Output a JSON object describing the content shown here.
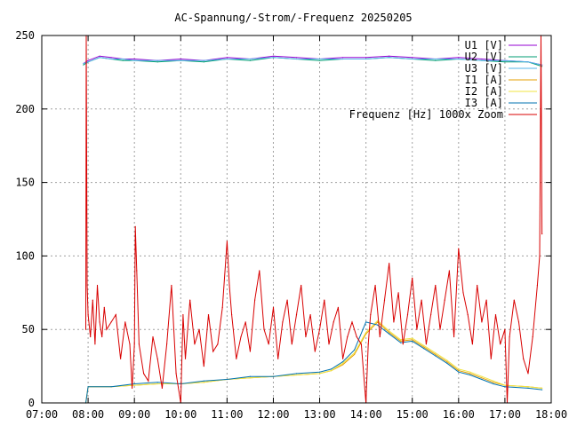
{
  "chart_data": {
    "type": "line",
    "title": "AC-Spannung/-Strom/-Frequenz 20250205",
    "xlabel": "",
    "ylabel": "",
    "x_unit": "hours",
    "xlim": [
      7,
      18
    ],
    "ylim": [
      0,
      250
    ],
    "x_ticks": [
      "07:00",
      "08:00",
      "09:00",
      "10:00",
      "11:00",
      "12:00",
      "13:00",
      "14:00",
      "15:00",
      "16:00",
      "17:00",
      "18:00"
    ],
    "y_ticks": [
      "0",
      "50",
      "100",
      "150",
      "200",
      "250"
    ],
    "grid": true,
    "legend_position": "top-right",
    "series": [
      {
        "name": "U1 [V]",
        "color": "#9400d3",
        "x": [
          7.9,
          8.0,
          8.25,
          8.5,
          8.75,
          9.0,
          9.5,
          10.0,
          10.5,
          11.0,
          11.5,
          12.0,
          12.5,
          13.0,
          13.5,
          14.0,
          14.5,
          15.0,
          15.5,
          16.0,
          16.5,
          17.0,
          17.5,
          17.8
        ],
        "y": [
          231,
          233,
          236,
          235,
          234,
          234,
          233,
          234,
          233,
          235,
          234,
          236,
          235,
          234,
          235,
          235,
          236,
          235,
          234,
          235,
          234,
          233,
          232,
          230
        ]
      },
      {
        "name": "U2 [V]",
        "color": "#009e73",
        "x": [
          7.9,
          8.0,
          8.25,
          8.5,
          8.75,
          9.0,
          9.5,
          10.0,
          10.5,
          11.0,
          11.5,
          12.0,
          12.5,
          13.0,
          13.5,
          14.0,
          14.5,
          15.0,
          15.5,
          16.0,
          16.5,
          17.0,
          17.5,
          17.8
        ],
        "y": [
          230,
          232,
          235,
          234,
          233,
          233,
          232,
          233,
          232,
          234,
          233,
          235,
          234,
          233,
          234,
          234,
          235,
          234,
          233,
          234,
          233,
          232,
          232,
          229
        ]
      },
      {
        "name": "U3 [V]",
        "color": "#56b4e9",
        "x": [
          7.9,
          8.0,
          8.25,
          8.5,
          8.75,
          9.0,
          9.5,
          10.0,
          10.5,
          11.0,
          11.5,
          12.0,
          12.5,
          13.0,
          13.5,
          14.0,
          14.5,
          15.0,
          15.5,
          16.0,
          16.5,
          17.0,
          17.5,
          17.8
        ],
        "y": [
          231,
          232,
          235,
          234,
          234,
          233,
          233,
          233,
          233,
          234,
          234,
          235,
          234,
          234,
          234,
          234,
          235,
          234,
          234,
          234,
          233,
          233,
          232,
          230
        ]
      },
      {
        "name": "I1 [A]",
        "color": "#e69f00",
        "x": [
          7.95,
          8.0,
          8.5,
          9.0,
          9.5,
          10.0,
          10.5,
          11.0,
          11.5,
          12.0,
          12.5,
          13.0,
          13.25,
          13.5,
          13.75,
          14.0,
          14.25,
          14.5,
          14.75,
          15.0,
          15.25,
          15.5,
          15.75,
          16.0,
          16.25,
          16.5,
          16.75,
          17.0,
          17.5,
          17.8
        ],
        "y": [
          0,
          11,
          11,
          12,
          13,
          13,
          14,
          16,
          17,
          18,
          19,
          20,
          22,
          26,
          33,
          47,
          55,
          48,
          42,
          43,
          38,
          33,
          28,
          22,
          20,
          17,
          14,
          12,
          11,
          10
        ]
      },
      {
        "name": "I2 [A]",
        "color": "#f0e442",
        "x": [
          7.95,
          8.0,
          8.5,
          9.0,
          9.5,
          10.0,
          10.5,
          11.0,
          11.5,
          12.0,
          12.5,
          13.0,
          13.25,
          13.5,
          13.75,
          14.0,
          14.25,
          14.5,
          14.75,
          15.0,
          15.25,
          15.5,
          15.75,
          16.0,
          16.25,
          16.5,
          16.75,
          17.0,
          17.5,
          17.8
        ],
        "y": [
          0,
          11,
          11,
          12,
          13,
          13,
          14,
          16,
          17,
          18,
          19,
          20,
          22,
          27,
          34,
          48,
          56,
          49,
          43,
          44,
          39,
          34,
          29,
          23,
          21,
          18,
          15,
          12,
          11,
          10
        ]
      },
      {
        "name": "I3 [A]",
        "color": "#0072b2",
        "x": [
          7.95,
          8.0,
          8.5,
          9.0,
          9.5,
          10.0,
          10.5,
          11.0,
          11.5,
          12.0,
          12.5,
          13.0,
          13.25,
          13.5,
          13.75,
          14.0,
          14.25,
          14.5,
          14.75,
          15.0,
          15.25,
          15.5,
          15.75,
          16.0,
          16.25,
          16.5,
          16.75,
          17.0,
          17.5,
          17.8
        ],
        "y": [
          0,
          11,
          11,
          13,
          14,
          13,
          15,
          16,
          18,
          18,
          20,
          21,
          23,
          28,
          36,
          55,
          53,
          47,
          41,
          42,
          37,
          32,
          27,
          21,
          19,
          16,
          13,
          11,
          10,
          9
        ]
      },
      {
        "name": "Frequenz [Hz] 1000x Zoom",
        "color": "#d80000",
        "x": [
          7.95,
          7.96,
          7.98,
          8.0,
          8.05,
          8.1,
          8.15,
          8.2,
          8.25,
          8.3,
          8.35,
          8.4,
          8.5,
          8.6,
          8.7,
          8.8,
          8.9,
          8.95,
          9.0,
          9.02,
          9.05,
          9.1,
          9.2,
          9.3,
          9.4,
          9.5,
          9.6,
          9.7,
          9.8,
          9.9,
          10.0,
          10.05,
          10.1,
          10.2,
          10.3,
          10.4,
          10.5,
          10.6,
          10.7,
          10.8,
          10.9,
          11.0,
          11.05,
          11.1,
          11.2,
          11.3,
          11.4,
          11.5,
          11.6,
          11.7,
          11.8,
          11.9,
          12.0,
          12.1,
          12.2,
          12.3,
          12.4,
          12.5,
          12.6,
          12.7,
          12.8,
          12.9,
          13.0,
          13.1,
          13.2,
          13.3,
          13.4,
          13.5,
          13.6,
          13.7,
          13.8,
          13.9,
          13.95,
          14.0,
          14.05,
          14.1,
          14.2,
          14.3,
          14.4,
          14.5,
          14.6,
          14.7,
          14.8,
          14.9,
          15.0,
          15.1,
          15.2,
          15.3,
          15.4,
          15.5,
          15.6,
          15.7,
          15.8,
          15.9,
          16.0,
          16.1,
          16.2,
          16.3,
          16.4,
          16.5,
          16.6,
          16.7,
          16.8,
          16.9,
          17.0,
          17.05,
          17.1,
          17.2,
          17.3,
          17.4,
          17.5,
          17.6,
          17.7,
          17.75,
          17.78,
          17.8
        ],
        "y": [
          50,
          250,
          80,
          60,
          45,
          70,
          40,
          80,
          55,
          45,
          65,
          50,
          55,
          60,
          30,
          55,
          40,
          10,
          40,
          120,
          90,
          40,
          20,
          15,
          45,
          30,
          10,
          40,
          80,
          20,
          0,
          60,
          30,
          70,
          40,
          50,
          25,
          60,
          35,
          40,
          65,
          110,
          80,
          60,
          30,
          45,
          55,
          35,
          70,
          90,
          50,
          40,
          65,
          30,
          55,
          70,
          40,
          60,
          80,
          45,
          60,
          35,
          50,
          70,
          40,
          55,
          65,
          30,
          45,
          55,
          45,
          40,
          20,
          0,
          40,
          60,
          80,
          45,
          70,
          95,
          55,
          75,
          40,
          60,
          85,
          50,
          70,
          40,
          60,
          80,
          50,
          70,
          90,
          45,
          105,
          75,
          60,
          40,
          80,
          55,
          70,
          30,
          60,
          40,
          50,
          0,
          45,
          70,
          55,
          30,
          20,
          45,
          80,
          100,
          250,
          115
        ]
      }
    ]
  }
}
